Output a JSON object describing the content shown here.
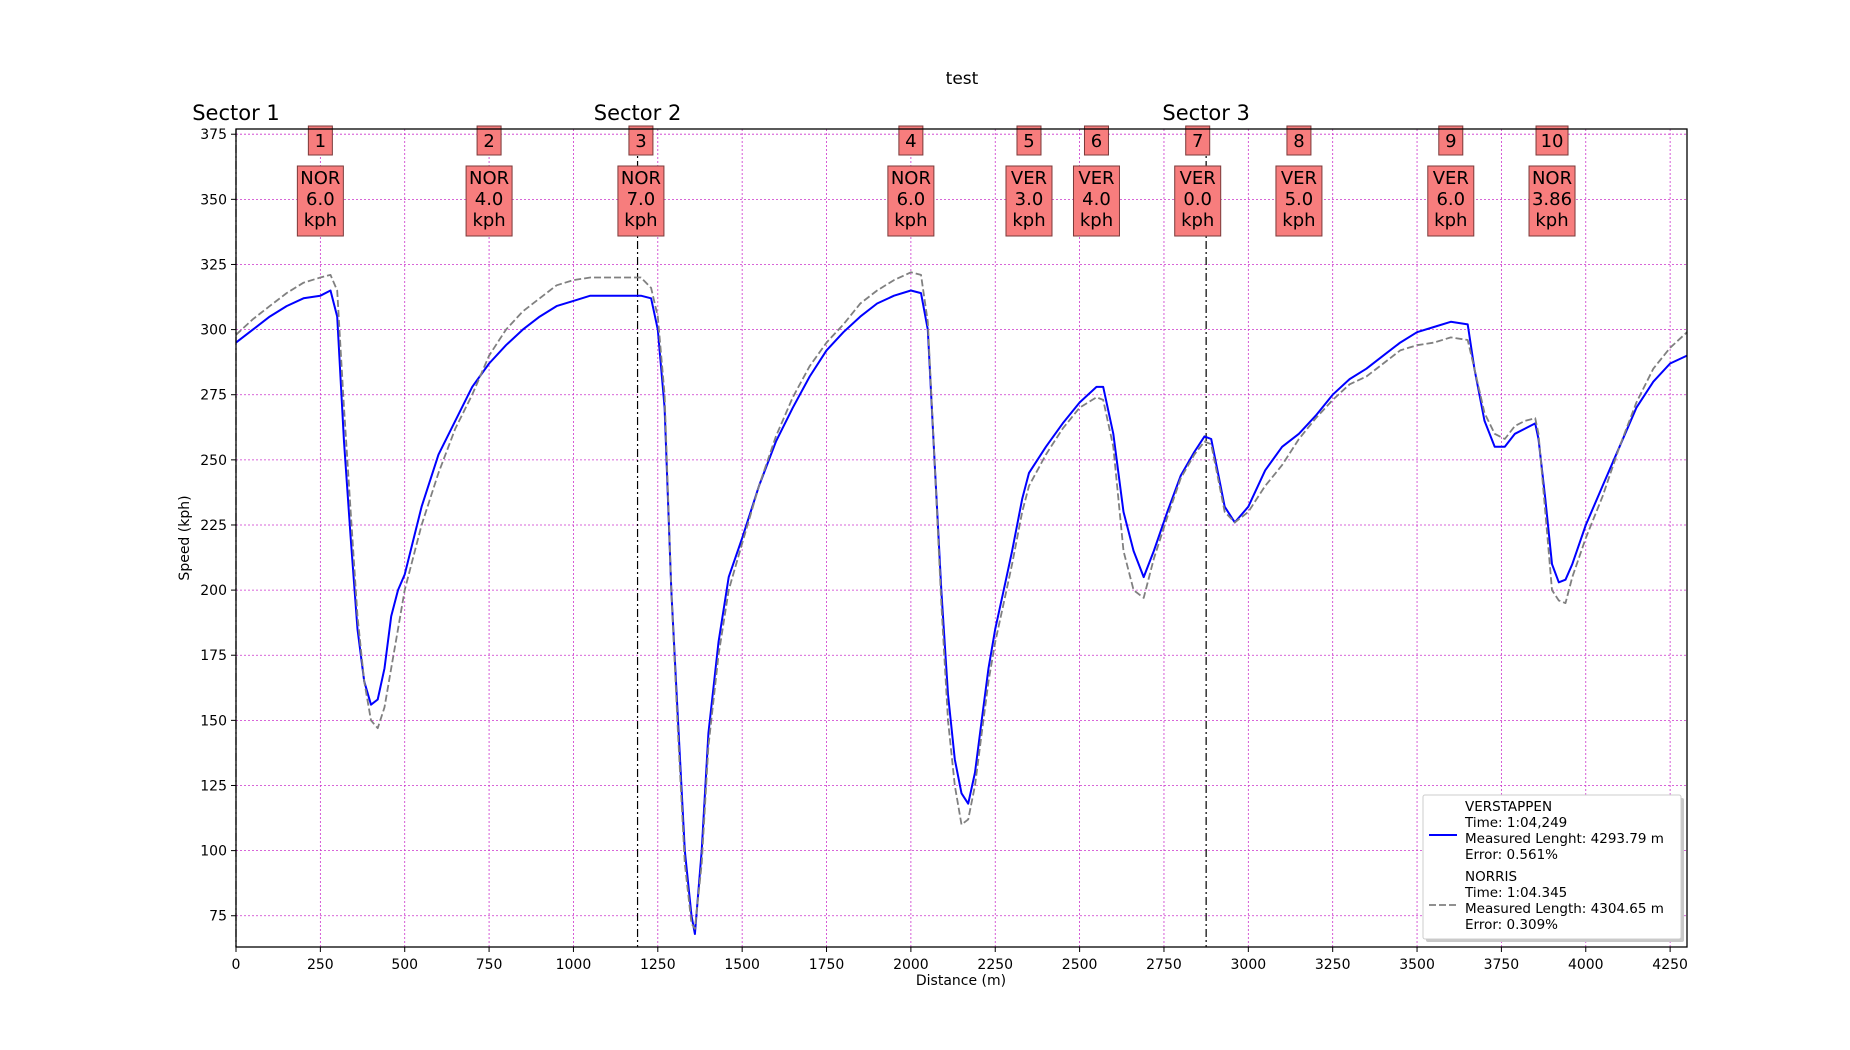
{
  "chart_data": {
    "type": "line",
    "title": "test",
    "xlabel": "Distance (m)",
    "ylabel": "Speed (kph)",
    "xlim": [
      0,
      4300
    ],
    "ylim": [
      63,
      377
    ],
    "xticks": [
      0,
      250,
      500,
      750,
      1000,
      1250,
      1500,
      1750,
      2000,
      2250,
      2500,
      2750,
      3000,
      3250,
      3500,
      3750,
      4000,
      4250
    ],
    "yticks": [
      75,
      100,
      125,
      150,
      175,
      200,
      225,
      250,
      275,
      300,
      325,
      350,
      375
    ],
    "xtick_labels": [
      "0",
      "250",
      "500",
      "750",
      "1000",
      "1250",
      "1500",
      "1750",
      "2000",
      "2250",
      "2500",
      "2750",
      "3000",
      "3250",
      "3500",
      "3750",
      "4000",
      "4250"
    ],
    "ytick_labels": [
      "75",
      "100",
      "125",
      "150",
      "175",
      "200",
      "225",
      "250",
      "275",
      "300",
      "325",
      "350",
      "375"
    ],
    "grid": true,
    "grid_color": "#cc33cc",
    "legend_position": "lower-right",
    "sectors": [
      {
        "label": "Sector 1",
        "x": 0
      },
      {
        "label": "Sector 2",
        "x": 1190
      },
      {
        "label": "Sector 3",
        "x": 2875
      }
    ],
    "corners": [
      {
        "number": "1",
        "x": 250,
        "driver": "NOR",
        "delta": "6.0",
        "unit": "kph"
      },
      {
        "number": "2",
        "x": 750,
        "driver": "NOR",
        "delta": "4.0",
        "unit": "kph"
      },
      {
        "number": "3",
        "x": 1200,
        "driver": "NOR",
        "delta": "7.0",
        "unit": "kph"
      },
      {
        "number": "4",
        "x": 2000,
        "driver": "NOR",
        "delta": "6.0",
        "unit": "kph"
      },
      {
        "number": "5",
        "x": 2350,
        "driver": "VER",
        "delta": "3.0",
        "unit": "kph"
      },
      {
        "number": "6",
        "x": 2550,
        "driver": "VER",
        "delta": "4.0",
        "unit": "kph"
      },
      {
        "number": "7",
        "x": 2850,
        "driver": "VER",
        "delta": "0.0",
        "unit": "kph"
      },
      {
        "number": "8",
        "x": 3150,
        "driver": "VER",
        "delta": "5.0",
        "unit": "kph"
      },
      {
        "number": "9",
        "x": 3600,
        "driver": "VER",
        "delta": "6.0",
        "unit": "kph"
      },
      {
        "number": "10",
        "x": 3900,
        "driver": "NOR",
        "delta": "3.86",
        "unit": "kph"
      }
    ],
    "series": [
      {
        "name": "VERSTAPPEN",
        "legend_lines": [
          "VERSTAPPEN",
          "Time: 1:04,249",
          "Measured Lenght: 4293.79 m",
          "Error: 0.561%"
        ],
        "color": "#0000ff",
        "style": "solid",
        "x": [
          0,
          50,
          100,
          150,
          200,
          250,
          280,
          300,
          320,
          340,
          360,
          380,
          400,
          420,
          440,
          460,
          480,
          500,
          550,
          600,
          650,
          700,
          750,
          800,
          850,
          900,
          950,
          1000,
          1050,
          1100,
          1150,
          1200,
          1230,
          1250,
          1270,
          1290,
          1310,
          1330,
          1350,
          1360,
          1380,
          1400,
          1430,
          1460,
          1500,
          1550,
          1600,
          1650,
          1700,
          1750,
          1800,
          1850,
          1900,
          1950,
          2000,
          2030,
          2050,
          2070,
          2090,
          2110,
          2130,
          2150,
          2170,
          2190,
          2210,
          2230,
          2250,
          2280,
          2300,
          2330,
          2350,
          2400,
          2450,
          2500,
          2550,
          2570,
          2600,
          2630,
          2660,
          2690,
          2720,
          2760,
          2800,
          2840,
          2870,
          2890,
          2910,
          2930,
          2960,
          3000,
          3050,
          3100,
          3150,
          3200,
          3250,
          3300,
          3350,
          3400,
          3450,
          3500,
          3550,
          3600,
          3650,
          3670,
          3700,
          3730,
          3760,
          3790,
          3820,
          3850,
          3860,
          3880,
          3900,
          3920,
          3940,
          3960,
          4000,
          4050,
          4100,
          4150,
          4200,
          4250,
          4300
        ],
        "y": [
          295,
          300,
          305,
          309,
          312,
          313,
          315,
          305,
          257,
          220,
          185,
          165,
          156,
          158,
          170,
          190,
          200,
          206,
          232,
          252,
          265,
          278,
          287,
          294,
          300,
          305,
          309,
          311,
          313,
          313,
          313,
          313,
          312,
          300,
          270,
          200,
          150,
          100,
          75,
          68,
          100,
          145,
          180,
          205,
          220,
          240,
          257,
          270,
          282,
          292,
          299,
          305,
          310,
          313,
          315,
          314,
          300,
          250,
          200,
          160,
          135,
          122,
          118,
          130,
          150,
          170,
          185,
          203,
          215,
          235,
          245,
          255,
          264,
          272,
          278,
          278,
          260,
          230,
          215,
          205,
          215,
          230,
          244,
          253,
          259,
          258,
          245,
          232,
          226,
          232,
          246,
          255,
          260,
          267,
          275,
          281,
          285,
          290,
          295,
          299,
          301,
          303,
          302,
          285,
          265,
          255,
          255,
          260,
          262,
          264,
          258,
          235,
          210,
          203,
          204,
          210,
          225,
          240,
          255,
          270,
          280,
          287,
          290
        ]
      },
      {
        "name": "NORRIS",
        "legend_lines": [
          "NORRIS",
          "Time: 1:04.345",
          "Measured Length: 4304.65 m",
          "Error: 0.309%"
        ],
        "color": "#808080",
        "style": "dashed",
        "x": [
          0,
          50,
          100,
          150,
          200,
          250,
          280,
          300,
          320,
          340,
          360,
          380,
          400,
          420,
          440,
          460,
          480,
          500,
          550,
          600,
          650,
          700,
          750,
          800,
          850,
          900,
          950,
          1000,
          1050,
          1100,
          1150,
          1200,
          1230,
          1250,
          1270,
          1290,
          1310,
          1330,
          1350,
          1360,
          1380,
          1400,
          1430,
          1460,
          1500,
          1550,
          1600,
          1650,
          1700,
          1750,
          1800,
          1850,
          1900,
          1950,
          2000,
          2030,
          2050,
          2070,
          2090,
          2110,
          2130,
          2150,
          2170,
          2190,
          2210,
          2230,
          2250,
          2280,
          2300,
          2330,
          2350,
          2400,
          2450,
          2500,
          2550,
          2570,
          2600,
          2630,
          2660,
          2690,
          2720,
          2760,
          2800,
          2840,
          2870,
          2890,
          2910,
          2930,
          2960,
          3000,
          3050,
          3100,
          3150,
          3200,
          3250,
          3300,
          3350,
          3400,
          3450,
          3500,
          3550,
          3600,
          3650,
          3670,
          3700,
          3730,
          3760,
          3790,
          3820,
          3850,
          3860,
          3880,
          3900,
          3920,
          3940,
          3960,
          4000,
          4050,
          4100,
          4150,
          4200,
          4250,
          4300
        ],
        "y": [
          298,
          304,
          309,
          314,
          318,
          320,
          321,
          315,
          270,
          230,
          190,
          165,
          150,
          147,
          155,
          170,
          185,
          200,
          225,
          245,
          262,
          275,
          290,
          300,
          307,
          312,
          317,
          319,
          320,
          320,
          320,
          320,
          316,
          305,
          275,
          200,
          145,
          95,
          72,
          70,
          95,
          140,
          175,
          200,
          218,
          240,
          259,
          274,
          286,
          295,
          302,
          310,
          315,
          319,
          322,
          321,
          303,
          250,
          195,
          150,
          125,
          110,
          112,
          125,
          145,
          165,
          180,
          198,
          210,
          230,
          240,
          252,
          262,
          270,
          274,
          273,
          255,
          215,
          200,
          197,
          212,
          228,
          243,
          252,
          257,
          256,
          243,
          230,
          226,
          230,
          240,
          248,
          258,
          266,
          273,
          279,
          282,
          287,
          292,
          294,
          295,
          297,
          296,
          285,
          268,
          260,
          258,
          263,
          265,
          266,
          260,
          230,
          200,
          196,
          195,
          205,
          220,
          236,
          255,
          272,
          285,
          293,
          299
        ]
      }
    ]
  }
}
